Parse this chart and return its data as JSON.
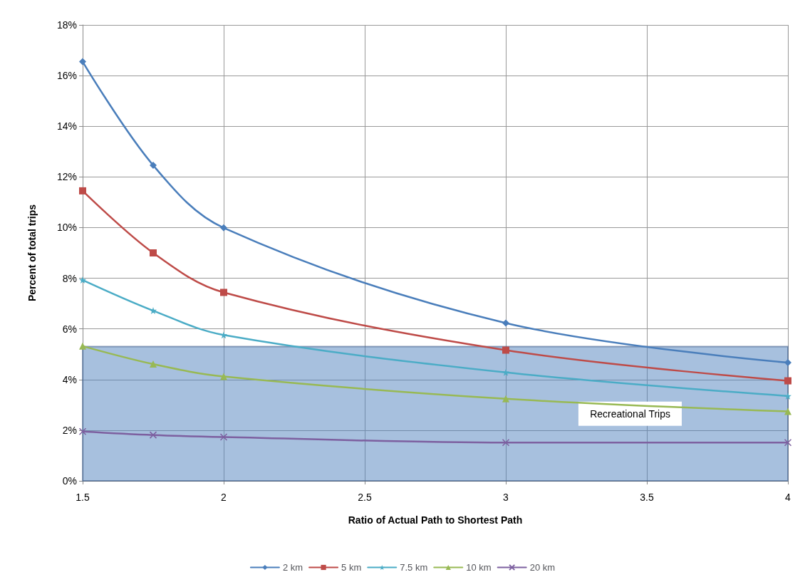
{
  "chart_data": {
    "type": "line",
    "xlabel": "Ratio of Actual Path to Shortest Path",
    "ylabel": "Percent of total trips",
    "x": [
      1.5,
      1.75,
      2,
      3,
      4
    ],
    "xlim": [
      1.5,
      4
    ],
    "xticks": [
      1.5,
      2,
      2.5,
      3,
      3.5,
      4
    ],
    "ylim": [
      0,
      18
    ],
    "yticks": [
      {
        "value": 0,
        "label": "0%"
      },
      {
        "value": 2,
        "label": "2%"
      },
      {
        "value": 4,
        "label": "4%"
      },
      {
        "value": 6,
        "label": "6%"
      },
      {
        "value": 8,
        "label": "8%"
      },
      {
        "value": 10,
        "label": "10%"
      },
      {
        "value": 12,
        "label": "12%"
      },
      {
        "value": 14,
        "label": "14%"
      },
      {
        "value": 16,
        "label": "16%"
      },
      {
        "value": 18,
        "label": "18%"
      }
    ],
    "series": [
      {
        "name": "2 km",
        "color": "#4a7ebb",
        "marker": "diamond",
        "values": [
          16.55,
          12.46,
          9.99,
          6.23,
          4.67
        ]
      },
      {
        "name": "5 km",
        "color": "#be4b48",
        "marker": "square",
        "values": [
          11.45,
          9.0,
          7.44,
          5.16,
          3.95
        ]
      },
      {
        "name": "7.5 km",
        "color": "#4bacc6",
        "marker": "star",
        "values": [
          7.93,
          6.72,
          5.76,
          4.28,
          3.35
        ]
      },
      {
        "name": "10 km",
        "color": "#98b954",
        "marker": "triangle",
        "values": [
          5.32,
          4.61,
          4.12,
          3.24,
          2.74
        ]
      },
      {
        "name": "20 km",
        "color": "#7d60a0",
        "marker": "cross",
        "values": [
          1.95,
          1.81,
          1.73,
          1.51,
          1.51
        ]
      }
    ],
    "bands": [
      {
        "axis": "y",
        "from": 0,
        "to": 5.3,
        "label": "Recreational Trips",
        "color": "#4f81bd"
      }
    ],
    "grid": true,
    "legend": "bottom",
    "line_style": "solid"
  }
}
